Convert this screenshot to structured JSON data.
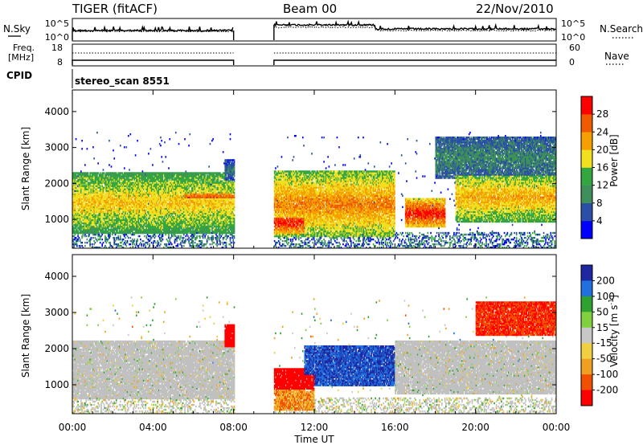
{
  "header": {
    "radar": "TIGER (fitACF)",
    "beam": "Beam 00",
    "date": "22/Nov/2010"
  },
  "strips": {
    "nsky_label": "N.Sky",
    "nsearch_label": "N.Search",
    "freq_label_top": "Freq.",
    "freq_label_bottom": "[MHz]",
    "nave_label": "Nave",
    "cpid_label": "CPID",
    "cpid_value": "stereo_scan 8551",
    "noise_left_ticks": [
      "10^5",
      "10^0"
    ],
    "noise_right_ticks": [
      "10^5",
      "10^0"
    ],
    "freq_ticks": [
      "18",
      "8"
    ],
    "nave_ticks": [
      "60",
      "0"
    ]
  },
  "colors": {
    "power_scale": [
      "#0000ff",
      "#2b4fa7",
      "#3f8f5a",
      "#33a640",
      "#f0e020",
      "#f5a000",
      "#f05a00",
      "#ff0000"
    ],
    "velocity_scale": [
      "#1e28a0",
      "#2070e0",
      "#30a030",
      "#80d040",
      "#c8c8c8",
      "#f0d040",
      "#f0a020",
      "#f05000",
      "#ff0000"
    ],
    "ground_scatter": "#c0c0c0"
  },
  "chart_data": [
    {
      "type": "heatmap",
      "name": "power",
      "xlabel": "",
      "ylabel": "Slant Range [km]",
      "yticks": [
        "1000",
        "2000",
        "3000",
        "4000"
      ],
      "ylim": [
        200,
        4600
      ],
      "xlim": [
        0,
        24
      ],
      "colorbar": {
        "label": "Power [dB]",
        "ticks": [
          "4",
          "8",
          "12",
          "16",
          "20",
          "24",
          "28"
        ],
        "range": [
          0,
          32
        ]
      },
      "data_gaps_ut": [
        [
          8,
          10
        ]
      ],
      "echo_regions": [
        {
          "t": [
            0,
            8
          ],
          "range_km": [
            700,
            2200
          ],
          "peak_db": 20
        },
        {
          "t": [
            5.5,
            8
          ],
          "range_km": [
            1300,
            1900
          ],
          "peak_db": 26
        },
        {
          "t": [
            7.5,
            8
          ],
          "range_km": [
            2000,
            2600
          ],
          "peak_db": 8
        },
        {
          "t": [
            10,
            16
          ],
          "range_km": [
            600,
            2200
          ],
          "peak_db": 24
        },
        {
          "t": [
            10,
            11.5
          ],
          "range_km": [
            600,
            1200
          ],
          "peak_db": 30
        },
        {
          "t": [
            16.5,
            18.5
          ],
          "range_km": [
            800,
            1500
          ],
          "peak_db": 30
        },
        {
          "t": [
            19,
            24
          ],
          "range_km": [
            1000,
            2200
          ],
          "peak_db": 22
        },
        {
          "t": [
            18,
            24
          ],
          "range_km": [
            2200,
            3200
          ],
          "peak_db": 10
        }
      ]
    },
    {
      "type": "heatmap",
      "name": "velocity",
      "xlabel": "Time UT",
      "ylabel": "Slant Range [km]",
      "xticks": [
        "00:00",
        "04:00",
        "08:00",
        "12:00",
        "16:00",
        "20:00",
        "00:00"
      ],
      "yticks": [
        "1000",
        "2000",
        "3000",
        "4000"
      ],
      "ylim": [
        200,
        4600
      ],
      "xlim": [
        0,
        24
      ],
      "colorbar": {
        "label": "Velocity [m s^-1]",
        "ticks": [
          "200",
          "100",
          "50",
          "15",
          "-15",
          "-50",
          "-100",
          "-200"
        ]
      },
      "data_gaps_ut": [
        [
          8,
          10
        ]
      ],
      "echo_regions": [
        {
          "t": [
            0,
            8
          ],
          "range_km": [
            700,
            2100
          ],
          "velocity": 0,
          "ground_scatter": true
        },
        {
          "t": [
            7.5,
            8
          ],
          "range_km": [
            2000,
            2600
          ],
          "velocity": -200
        },
        {
          "t": [
            10,
            12
          ],
          "range_km": [
            800,
            1400
          ],
          "velocity": -200
        },
        {
          "t": [
            11.5,
            16
          ],
          "range_km": [
            1000,
            2000
          ],
          "velocity": 150
        },
        {
          "t": [
            10,
            12
          ],
          "range_km": [
            300,
            900
          ],
          "velocity": -60
        },
        {
          "t": [
            16,
            24
          ],
          "range_km": [
            800,
            2100
          ],
          "velocity": 0,
          "ground_scatter": true
        },
        {
          "t": [
            20,
            24
          ],
          "range_km": [
            2400,
            3200
          ],
          "velocity": -150
        }
      ]
    }
  ]
}
